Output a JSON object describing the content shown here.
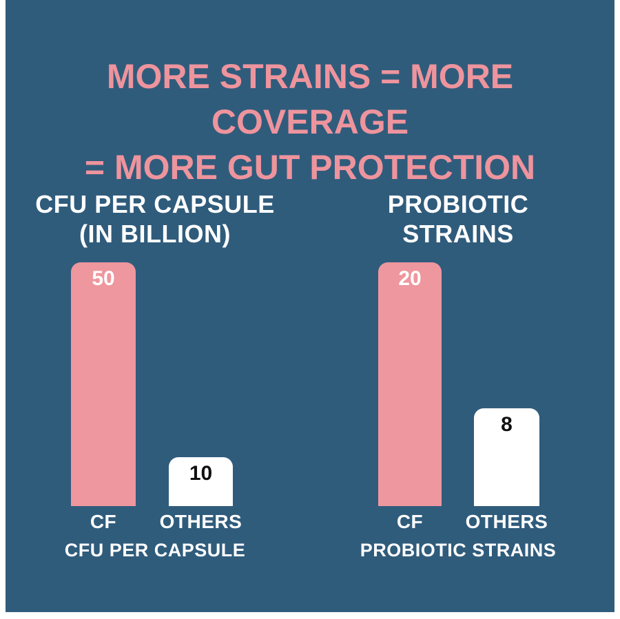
{
  "colors": {
    "page_background": "#ffffff",
    "canvas_background": "#305c7c",
    "accent_pink": "#ee949d",
    "bar_pink": "#ee979e",
    "bar_white": "#ffffff",
    "text_light": "#ffffff",
    "text_dark": "#111111"
  },
  "headline": {
    "line1": "MORE STRAINS = MORE COVERAGE",
    "line2": "= MORE GUT PROTECTION"
  },
  "chart_data": [
    {
      "type": "bar",
      "title": "CFU PER CAPSULE (IN BILLION)",
      "title_lines": [
        "CFU PER CAPSULE",
        "(IN BILLION)"
      ],
      "caption": "CFU PER CAPSULE",
      "categories": [
        "CF",
        "OTHERS"
      ],
      "values": [
        50,
        10
      ],
      "ylim": [
        0,
        50
      ],
      "bar_colors": [
        "#ee979e",
        "#ffffff"
      ],
      "value_label_colors": [
        "#ffffff",
        "#111111"
      ],
      "xlabel": "",
      "ylabel": "",
      "grid": false,
      "legend": "none"
    },
    {
      "type": "bar",
      "title": "PROBIOTIC STRAINS",
      "title_lines": [
        "PROBIOTIC STRAINS"
      ],
      "caption": "PROBIOTIC STRAINS",
      "categories": [
        "CF",
        "OTHERS"
      ],
      "values": [
        20,
        8
      ],
      "ylim": [
        0,
        20
      ],
      "bar_colors": [
        "#ee979e",
        "#ffffff"
      ],
      "value_label_colors": [
        "#ffffff",
        "#111111"
      ],
      "xlabel": "",
      "ylabel": "",
      "grid": false,
      "legend": "none"
    }
  ]
}
